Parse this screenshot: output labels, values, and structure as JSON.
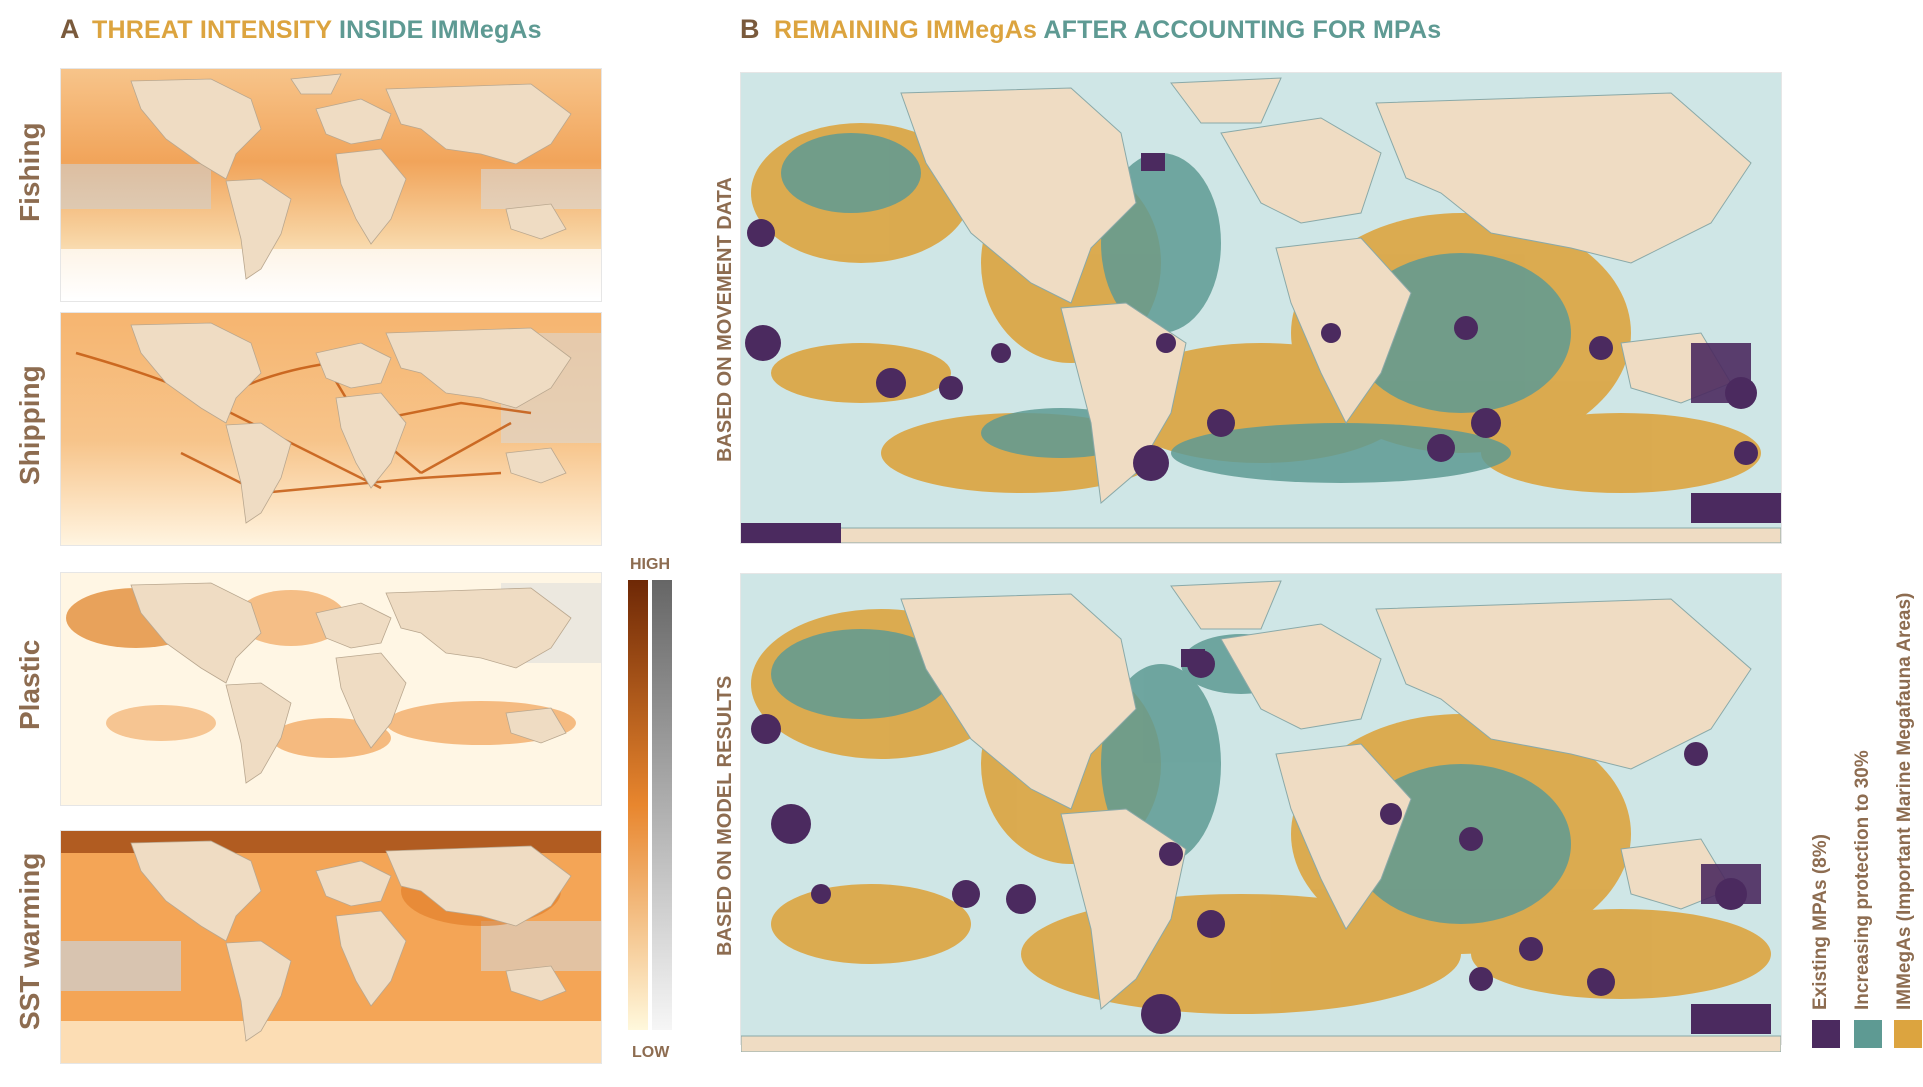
{
  "panel_a": {
    "letter": "A",
    "title_part1": "THREAT INTENSITY",
    "title_part2": "INSIDE IMMegAs",
    "rows": [
      "Fishing",
      "Shipping",
      "Plastic",
      "SST warming"
    ]
  },
  "panel_b": {
    "letter": "B",
    "title_part1": "REMAINING IMMegAs",
    "title_part2": "AFTER ACCOUNTING FOR MPAs",
    "maps": [
      "BASED ON MOVEMENT DATA",
      "BASED ON MODEL RESULTS"
    ]
  },
  "scale": {
    "high": "HIGH",
    "low": "LOW"
  },
  "legend": [
    {
      "label": "Existing MPAs (8%)",
      "color": "#4b2a5f"
    },
    {
      "label": "Increasing protection to 30%",
      "color": "#5e9a93"
    },
    {
      "label": "IMMegAs (Important Marine Megafauna Areas)",
      "color": "#dca43f"
    }
  ],
  "colors": {
    "land": "#efdcc3",
    "ocean_b": "#cfe6e6",
    "threat_high": "#7a2e08",
    "threat_mid": "#e8862e",
    "threat_low": "#fff6d8",
    "gray_high": "#6a6a6a",
    "gray_low": "#f4f4f4",
    "title_orange": "#dca43f",
    "title_teal": "#5e9a93",
    "label_brown": "#8d6c50"
  }
}
